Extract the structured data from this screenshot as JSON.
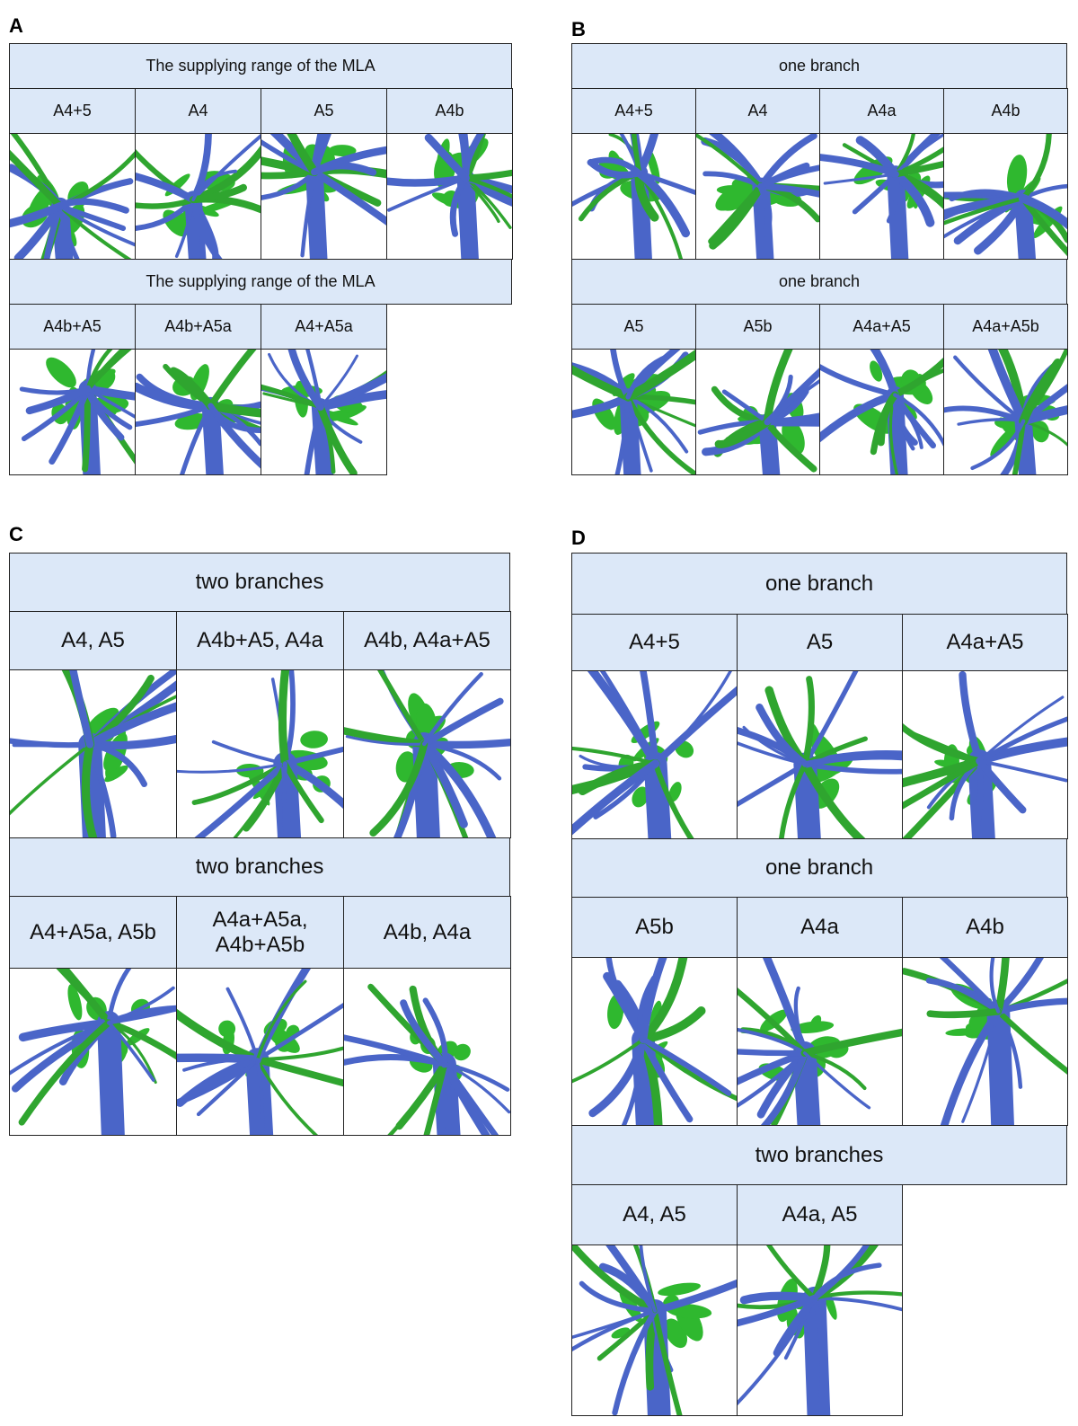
{
  "panels": [
    {
      "letter": "A",
      "sections": [
        {
          "header": "The supplying range of the MLA",
          "columns": [
            "A4+5",
            "A4",
            "A5",
            "A4b"
          ]
        },
        {
          "header": "The supplying range of the MLA",
          "columns": [
            "A4b+A5",
            "A4b+A5a",
            "A4+A5a"
          ]
        }
      ]
    },
    {
      "letter": "B",
      "sections": [
        {
          "header": "one branch",
          "columns": [
            "A4+5",
            "A4",
            "A4a",
            "A4b"
          ]
        },
        {
          "header": "one branch",
          "columns": [
            "A5",
            "A5b",
            "A4a+A5",
            "A4a+A5b"
          ]
        }
      ]
    },
    {
      "letter": "C",
      "sections": [
        {
          "header": "two branches",
          "columns": [
            "A4, A5",
            "A4b+A5, A4a",
            "A4b, A4a+A5"
          ]
        },
        {
          "header": "two branches",
          "columns": [
            "A4+A5a, A5b",
            "A4a+A5a, A4b+A5b",
            "A4b, A4a"
          ]
        }
      ]
    },
    {
      "letter": "D",
      "sections": [
        {
          "header": "one branch",
          "columns": [
            "A4+5",
            "A5",
            "A4a+A5"
          ]
        },
        {
          "header": "one branch",
          "columns": [
            "A5b",
            "A4a",
            "A4b"
          ]
        },
        {
          "header": "two branches",
          "columns": [
            "A4, A5",
            "A4a, A5"
          ]
        }
      ]
    }
  ]
}
